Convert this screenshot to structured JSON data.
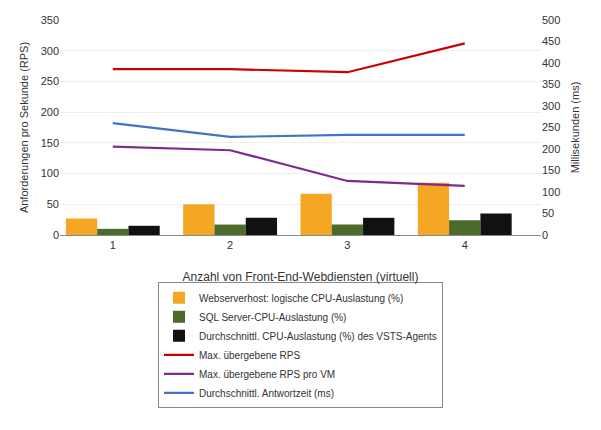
{
  "chart_data": {
    "type": "bar",
    "x": [
      1,
      2,
      3,
      4
    ],
    "xlabel": "Anzahl von Front-End-Webdiensten (virtuell)",
    "ylabel": "Anforderungen pro Sekunde (RPS)",
    "y2label": "Millisekunden (ms)",
    "xlim": [
      0.55,
      4.65
    ],
    "xticks": [
      1,
      2,
      3,
      4
    ],
    "ylim": [
      0,
      350
    ],
    "yticks": [
      0,
      50,
      100,
      150,
      200,
      250,
      300,
      350
    ],
    "y2lim": [
      0,
      500
    ],
    "y2ticks": [
      0,
      50,
      100,
      150,
      200,
      250,
      300,
      350,
      400,
      450,
      500
    ],
    "grid": true,
    "legend": "lower center",
    "series": [
      {
        "name": "Webserverhost: logische CPU-Auslastung (%)",
        "type": "bar",
        "color": "#F5A623",
        "values": [
          27,
          50,
          67,
          85
        ]
      },
      {
        "name": "SQL Server-CPU-Auslastung (%)",
        "type": "bar",
        "color": "#4B6B2A",
        "values": [
          10,
          17,
          17,
          24
        ]
      },
      {
        "name": "Durchschnittl. CPU-Auslastung (%) des VSTS-Agents",
        "type": "bar",
        "color": "#111111",
        "values": [
          15,
          28,
          28,
          35
        ]
      },
      {
        "name": "Max. übergebene RPS",
        "type": "line",
        "color": "#CC0000",
        "values": [
          270,
          270,
          265,
          312
        ]
      },
      {
        "name": "Max. übergebene RPS pro VM",
        "type": "line",
        "color": "#7B2D8B",
        "values": [
          144,
          138,
          88,
          80
        ]
      },
      {
        "name": "Durchschnittl. Antwortzeit (ms)",
        "type": "line",
        "color": "#4472C4",
        "axis": "y2",
        "values": [
          260,
          228,
          233,
          233
        ]
      }
    ]
  }
}
